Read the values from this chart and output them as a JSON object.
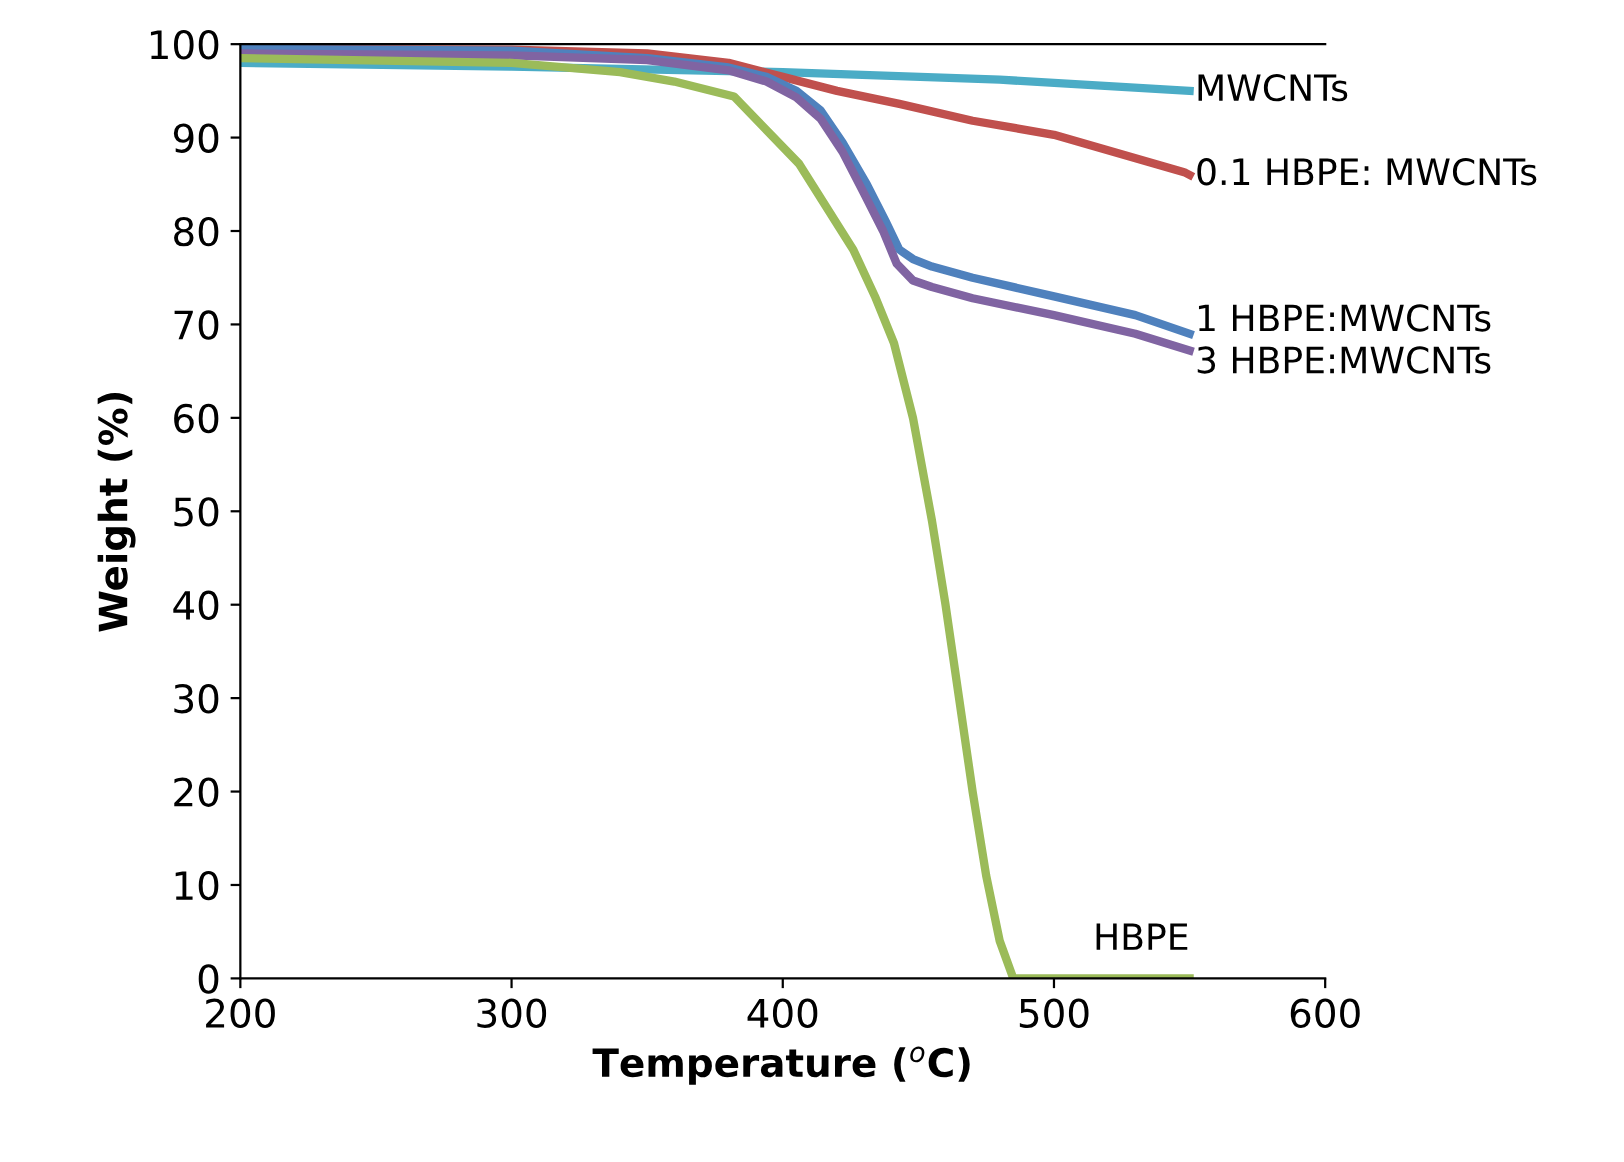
{
  "chart_data": {
    "type": "line",
    "xlabel": "Temperature ($^{o}$C)",
    "ylabel": "Weight (%)",
    "xlim": [
      200,
      600
    ],
    "ylim": [
      0,
      100
    ],
    "xticks": [
      200,
      300,
      400,
      500,
      600
    ],
    "yticks": [
      0,
      10,
      20,
      30,
      40,
      50,
      60,
      70,
      80,
      90,
      100
    ],
    "grid": false,
    "legend": false,
    "marker": "none",
    "line_style": "solid",
    "series": [
      {
        "name": "MWCNTs",
        "color": "#4bacc6",
        "x": [
          200,
          300,
          400,
          480,
          550
        ],
        "values": [
          98,
          97.6,
          97,
          96.2,
          95
        ]
      },
      {
        "name": "0.1 HBPE: MWCNTs",
        "color": "#c0504d",
        "x": [
          200,
          300,
          350,
          380,
          400,
          420,
          443,
          470,
          500,
          548,
          550
        ],
        "values": [
          99.5,
          99.4,
          99,
          98,
          96.5,
          95,
          93.6,
          91.8,
          90.3,
          86.3,
          86
        ]
      },
      {
        "name": "1 HBPE:MWCNTs",
        "color": "#4f81bd",
        "x": [
          200,
          300,
          350,
          380,
          394,
          405,
          414,
          422,
          431,
          438,
          443,
          448,
          455,
          470,
          500,
          530,
          550
        ],
        "values": [
          99.5,
          99.3,
          98.5,
          97.5,
          96.5,
          95,
          92.9,
          89.5,
          85,
          81,
          78,
          77,
          76.2,
          75,
          73,
          71,
          69
        ]
      },
      {
        "name": "3 HBPE:MWCNTs",
        "color": "#8064a2",
        "x": [
          200,
          300,
          350,
          380,
          394,
          405,
          414,
          422,
          430,
          437,
          442,
          448,
          455,
          470,
          500,
          530,
          550
        ],
        "values": [
          99,
          98.8,
          98.3,
          97.2,
          96,
          94.3,
          92,
          88.5,
          84,
          80,
          76.5,
          74.7,
          74,
          72.8,
          71,
          69,
          67.2
        ]
      },
      {
        "name": "HBPE",
        "color": "#9bbb59",
        "x": [
          200,
          300,
          340,
          360,
          382,
          406,
          426,
          434,
          441,
          448,
          455,
          460,
          465,
          470,
          475,
          480,
          485,
          550
        ],
        "values": [
          98.5,
          98,
          97,
          96,
          94.4,
          87.2,
          78,
          73,
          68,
          60,
          49,
          40,
          30,
          20,
          11,
          4,
          0,
          0
        ]
      }
    ]
  }
}
